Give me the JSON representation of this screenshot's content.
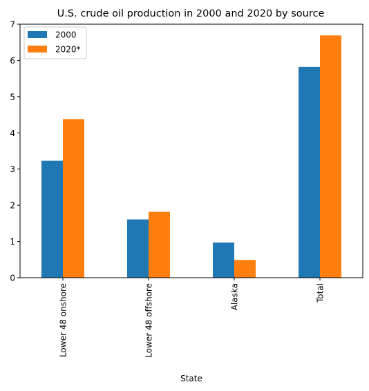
{
  "chart_data": {
    "type": "bar",
    "title": "U.S. crude oil production in 2000 and 2020 by source",
    "xlabel": "State",
    "ylabel": "",
    "categories": [
      "Lower 48 onshore",
      "Lower 48 offshore",
      "Alaska",
      "Total"
    ],
    "series": [
      {
        "name": "2000",
        "color": "#1f77b4",
        "values": [
          3.23,
          1.61,
          0.97,
          5.82
        ]
      },
      {
        "name": "2020*",
        "color": "#ff7f0e",
        "values": [
          4.38,
          1.82,
          0.49,
          6.69
        ]
      }
    ],
    "ylim": [
      0,
      7
    ],
    "yticks": [
      "0",
      "1",
      "2",
      "3",
      "4",
      "5",
      "6",
      "7"
    ],
    "legend_position": "top-left",
    "grid": false
  }
}
